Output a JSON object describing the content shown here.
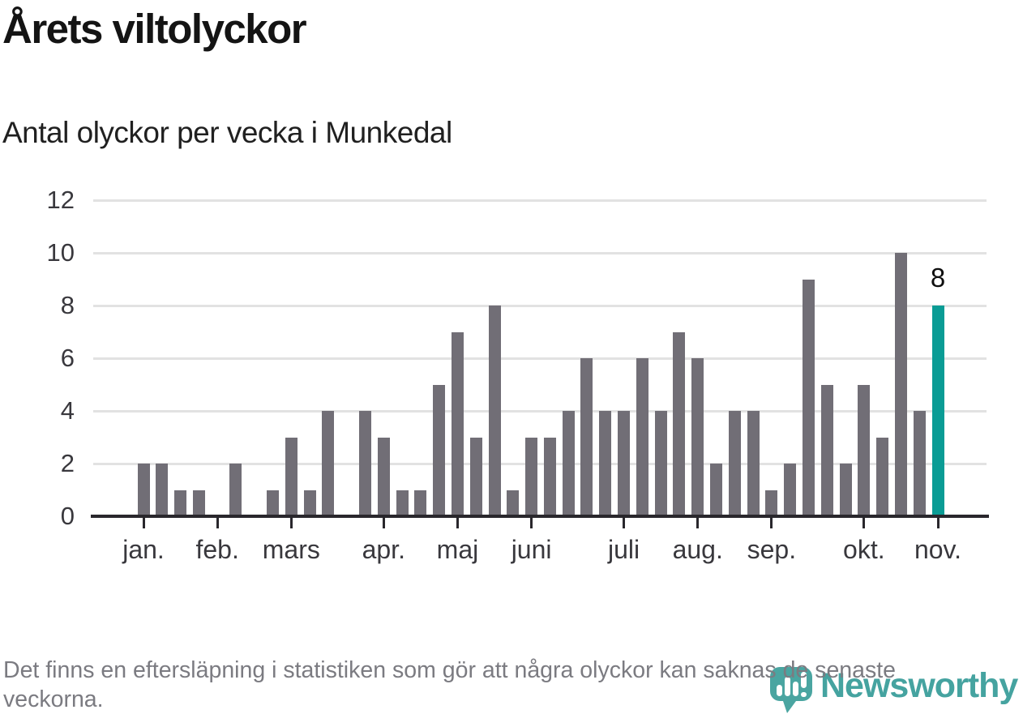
{
  "header": {
    "title": "Årets viltolyckor",
    "subtitle": "Antal olyckor per vecka i Munkedal"
  },
  "chart_data": {
    "type": "bar",
    "title": "Årets viltolyckor",
    "subtitle": "Antal olyckor per vecka i Munkedal",
    "x_unit": "vecka",
    "x": [
      1,
      2,
      3,
      4,
      5,
      6,
      7,
      8,
      9,
      10,
      11,
      12,
      13,
      14,
      15,
      16,
      17,
      18,
      19,
      20,
      21,
      22,
      23,
      24,
      25,
      26,
      27,
      28,
      29,
      30,
      31,
      32,
      33,
      34,
      35,
      36,
      37,
      38,
      39,
      40,
      41,
      42,
      43,
      44
    ],
    "values": [
      2,
      2,
      1,
      1,
      0,
      2,
      0,
      1,
      3,
      1,
      4,
      0,
      4,
      3,
      1,
      1,
      5,
      7,
      3,
      8,
      1,
      3,
      3,
      4,
      6,
      4,
      4,
      6,
      4,
      7,
      6,
      2,
      4,
      4,
      1,
      2,
      9,
      5,
      2,
      5,
      3,
      10,
      4,
      8
    ],
    "month_ticks": [
      {
        "label": "jan.",
        "week": 1
      },
      {
        "label": "feb.",
        "week": 5
      },
      {
        "label": "mars",
        "week": 9
      },
      {
        "label": "apr.",
        "week": 14
      },
      {
        "label": "maj",
        "week": 18
      },
      {
        "label": "juni",
        "week": 22
      },
      {
        "label": "juli",
        "week": 27
      },
      {
        "label": "aug.",
        "week": 31
      },
      {
        "label": "sep.",
        "week": 35
      },
      {
        "label": "okt.",
        "week": 40
      },
      {
        "label": "nov.",
        "week": 44
      }
    ],
    "ylim": [
      0,
      12
    ],
    "yticks": [
      0,
      2,
      4,
      6,
      8,
      10,
      12
    ],
    "grid": true,
    "legend": false,
    "annotation": {
      "week": 44,
      "text": "8"
    },
    "highlight_last_bar": true,
    "bar_color": "#716e76",
    "highlight_color": "#0a9c95",
    "grid_color": "#e2e2e2",
    "axis_color": "#29272c"
  },
  "footer": {
    "note": "Det finns en eftersläpning i statistiken som gör att några olyckor kan saknas de senaste veckorna."
  },
  "logo": {
    "brand": "Newsworthy",
    "color": "#45a3a0",
    "mark": "bar-chart-speech-bubble"
  }
}
